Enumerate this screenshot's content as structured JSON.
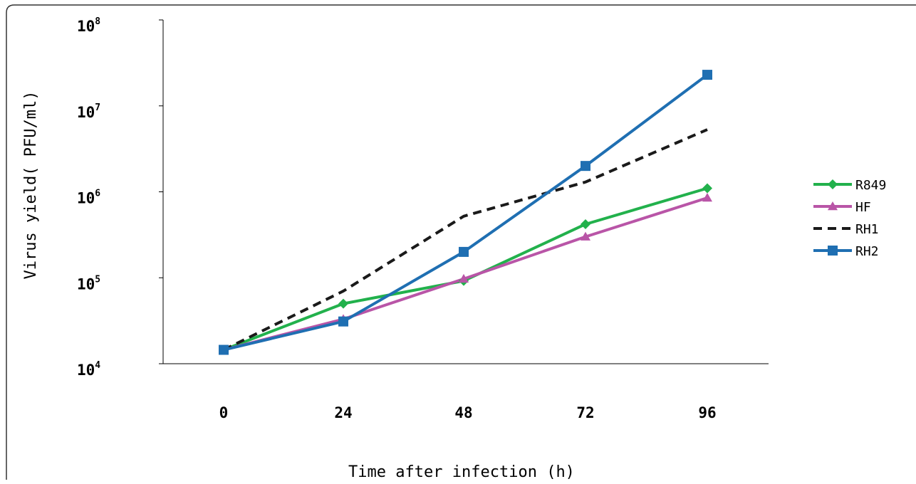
{
  "chart_data": {
    "type": "line",
    "title": "",
    "xlabel": "Time after infection (h)",
    "ylabel": "Virus yield( PFU/ml)",
    "x": [
      0,
      24,
      48,
      72,
      96
    ],
    "x_tick_labels": [
      "0",
      "24",
      "48",
      "72",
      "96"
    ],
    "y_scale": "log",
    "ylim": [
      10000,
      100000000
    ],
    "y_tick_labels": [
      {
        "base": "10",
        "exp": "4"
      },
      {
        "base": "10",
        "exp": "5"
      },
      {
        "base": "10",
        "exp": "6"
      },
      {
        "base": "10",
        "exp": "7"
      },
      {
        "base": "10",
        "exp": "8"
      }
    ],
    "grid": false,
    "legend_position": "right",
    "series": [
      {
        "name": "R849",
        "color": "#22b14c",
        "line_style": "solid",
        "marker": "diamond",
        "values": [
          14500,
          50000,
          92000,
          420000,
          1100000
        ]
      },
      {
        "name": "HF",
        "color": "#b955a7",
        "line_style": "solid",
        "marker": "triangle",
        "values": [
          14500,
          33000,
          97000,
          300000,
          850000
        ]
      },
      {
        "name": "RH1",
        "color": "#1a1a1a",
        "line_style": "dashed",
        "marker": "none",
        "values": [
          14500,
          70000,
          520000,
          1300000,
          5300000
        ]
      },
      {
        "name": "RH2",
        "color": "#1f6fb2",
        "line_style": "solid",
        "marker": "square",
        "values": [
          14500,
          31000,
          200000,
          2000000,
          23000000
        ]
      }
    ]
  }
}
